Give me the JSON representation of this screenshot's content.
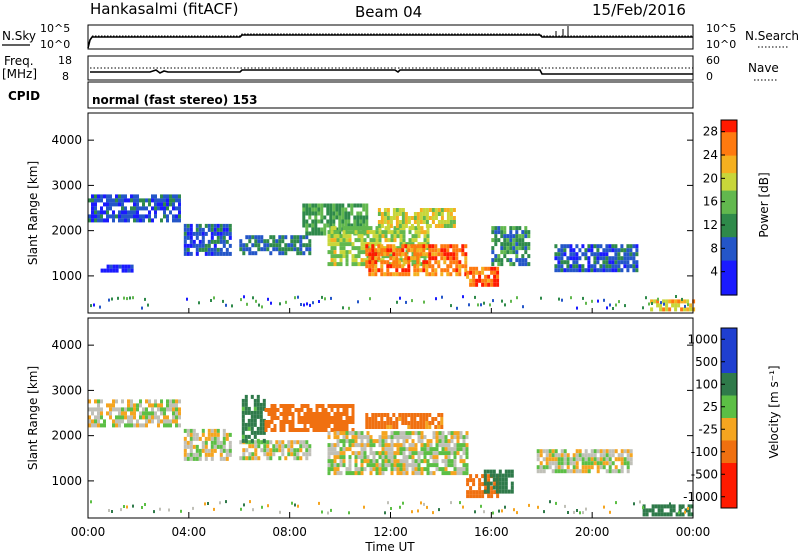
{
  "header": {
    "station": "Hankasalmi (fitACF)",
    "beam": "Beam 04",
    "date": "15/Feb/2016"
  },
  "noise_panel": {
    "left_label": "N.Sky",
    "right_label": "N.Search",
    "left_ticks": [
      "10^5",
      "10^0"
    ],
    "right_ticks": [
      "10^5",
      "10^0"
    ]
  },
  "freq_panel": {
    "left_label_1": "Freq.",
    "left_label_2": "[MHz]",
    "right_label": "Nave",
    "left_ticks": [
      "18",
      "8"
    ],
    "right_ticks": [
      "60",
      "0"
    ]
  },
  "cpid_panel": {
    "label": "CPID",
    "mode": "normal (fast stereo) 153"
  },
  "x_axis": {
    "label": "Time UT",
    "ticks": [
      "00:00",
      "04:00",
      "08:00",
      "12:00",
      "16:00",
      "20:00",
      "00:00"
    ]
  },
  "chart_data": [
    {
      "type": "heatmap",
      "parameter": "power",
      "xlabel": "Time UT",
      "ylabel": "Slant Range [km]",
      "xlim": [
        0,
        24
      ],
      "ylim": [
        180,
        4600
      ],
      "yticks": [
        "1000",
        "2000",
        "3000",
        "4000"
      ],
      "colorbar": {
        "label": "Power [dB]",
        "ticks": [
          "4",
          "8",
          "12",
          "16",
          "20",
          "24",
          "28"
        ],
        "range": [
          0,
          30
        ]
      },
      "echo_regions": [
        {
          "t0": 0.0,
          "t1": 3.6,
          "r0": 2200,
          "r1": 2800,
          "value": 8
        },
        {
          "t0": 0.5,
          "t1": 1.8,
          "r0": 1080,
          "r1": 1250,
          "value": 6
        },
        {
          "t0": 3.8,
          "t1": 5.6,
          "r0": 1500,
          "r1": 2150,
          "value": 8
        },
        {
          "t0": 6.0,
          "t1": 8.8,
          "r0": 1500,
          "r1": 1900,
          "value": 10
        },
        {
          "t0": 8.5,
          "t1": 11.0,
          "r0": 1900,
          "r1": 2600,
          "value": 14
        },
        {
          "t0": 9.5,
          "t1": 13.5,
          "r0": 1300,
          "r1": 2100,
          "value": 18
        },
        {
          "t0": 11.0,
          "t1": 15.0,
          "r0": 1000,
          "r1": 1700,
          "value": 26
        },
        {
          "t0": 11.5,
          "t1": 14.5,
          "r0": 2100,
          "r1": 2500,
          "value": 20
        },
        {
          "t0": 15.0,
          "t1": 16.3,
          "r0": 800,
          "r1": 1200,
          "value": 27
        },
        {
          "t0": 16.0,
          "t1": 17.5,
          "r0": 1300,
          "r1": 2100,
          "value": 12
        },
        {
          "t0": 18.5,
          "t1": 21.8,
          "r0": 1150,
          "r1": 1700,
          "value": 8
        },
        {
          "t0": 22.3,
          "t1": 24.0,
          "r0": 280,
          "r1": 480,
          "value": 22
        }
      ]
    },
    {
      "type": "heatmap",
      "parameter": "velocity",
      "xlabel": "Time UT",
      "ylabel": "Slant Range [km]",
      "xlim": [
        0,
        24
      ],
      "ylim": [
        180,
        4600
      ],
      "yticks": [
        "1000",
        "2000",
        "3000",
        "4000"
      ],
      "colorbar": {
        "label": "Velocity [m s⁻¹]",
        "ticks": [
          "1000",
          "500",
          "100",
          "25",
          "-25",
          "-100",
          "-500",
          "-1000"
        ]
      },
      "echo_regions": [
        {
          "t0": 0.0,
          "t1": 3.6,
          "r0": 2200,
          "r1": 2800,
          "value": 0
        },
        {
          "t0": 3.8,
          "t1": 5.6,
          "r0": 1500,
          "r1": 2150,
          "value": 0
        },
        {
          "t0": 6.0,
          "t1": 8.8,
          "r0": 1500,
          "r1": 1900,
          "value": 0
        },
        {
          "t0": 6.1,
          "t1": 7.0,
          "r0": 1900,
          "r1": 2900,
          "value": 150
        },
        {
          "t0": 7.0,
          "t1": 10.5,
          "r0": 2100,
          "r1": 2700,
          "value": -300
        },
        {
          "t0": 9.5,
          "t1": 15.0,
          "r0": 1200,
          "r1": 2100,
          "value": 0
        },
        {
          "t0": 11.0,
          "t1": 14.0,
          "r0": 2200,
          "r1": 2500,
          "value": -150
        },
        {
          "t0": 15.0,
          "t1": 16.3,
          "r0": 700,
          "r1": 1150,
          "value": -200
        },
        {
          "t0": 15.7,
          "t1": 16.8,
          "r0": 800,
          "r1": 1250,
          "value": 200
        },
        {
          "t0": 17.8,
          "t1": 21.5,
          "r0": 1200,
          "r1": 1700,
          "value": 0
        },
        {
          "t0": 22.0,
          "t1": 24.0,
          "r0": 280,
          "r1": 480,
          "value": 300
        }
      ]
    }
  ]
}
